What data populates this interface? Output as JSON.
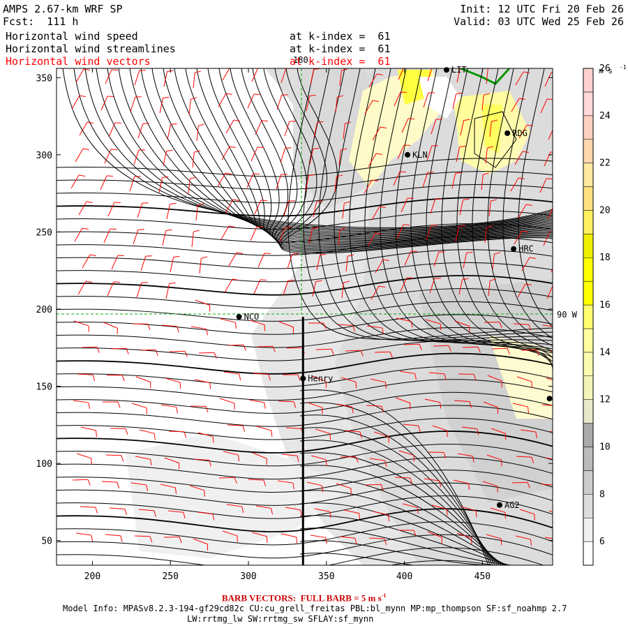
{
  "header": {
    "model": "AMPS 2.67-km WRF SP",
    "forecast": "Fcst:  111 h",
    "init": "Init: 12 UTC Fri 20 Feb 26",
    "valid": "Valid: 03 UTC Wed 25 Feb 26"
  },
  "fields": [
    {
      "name": "Horizontal wind speed",
      "level": "at k-index =  61",
      "color": "#000000"
    },
    {
      "name": "Horizontal wind streamlines",
      "level": "at k-index =  61",
      "color": "#000000"
    },
    {
      "name": "Horizontal wind vectors",
      "level": "at k-index =  61",
      "color": "#ff0000"
    }
  ],
  "map": {
    "x_axis": {
      "range": [
        177,
        495
      ],
      "ticks": [
        "200",
        "250",
        "300",
        "350",
        "400",
        "450"
      ]
    },
    "y_axis": {
      "range": [
        34,
        356
      ],
      "ticks": [
        "50",
        "100",
        "150",
        "200",
        "250",
        "300",
        "350"
      ]
    },
    "meridian_label": "180",
    "parallel_label": "90 W",
    "stations": [
      {
        "id": "LIT",
        "label": "LIT",
        "x": 427,
        "y": 355
      },
      {
        "id": "RDG",
        "label": "RDG",
        "x": 466,
        "y": 314
      },
      {
        "id": "KLN",
        "label": "KLN",
        "x": 402,
        "y": 300
      },
      {
        "id": "HRC",
        "label": "HRC",
        "x": 470,
        "y": 239
      },
      {
        "id": "NCO",
        "label": "NCO",
        "x": 294,
        "y": 195
      },
      {
        "id": "Henry",
        "label": "Henry",
        "x": 335,
        "y": 155
      },
      {
        "id": "AG2",
        "label": "AG2",
        "x": 461,
        "y": 73
      },
      {
        "id": "EDGE",
        "label": "",
        "x": 493,
        "y": 142
      }
    ],
    "transect": {
      "x": 335,
      "y_from": 34,
      "y_to": 195
    }
  },
  "colorbar": {
    "unit": "m s",
    "unit_exp": "-1",
    "labels": [
      "6",
      "8",
      "10",
      "12",
      "14",
      "16",
      "18",
      "20",
      "22",
      "24",
      "26"
    ],
    "colors": [
      "#ffffff",
      "#f0f0f0",
      "#dddddd",
      "#cccccc",
      "#bbbbbb",
      "#aaaaaa",
      "#e8e8cc",
      "#f4f4b8",
      "#fbfbb0",
      "#ffffa0",
      "#ffff70",
      "#ffff00",
      "#ffff00",
      "#f0f000",
      "#fff060",
      "#ffe080",
      "#ffe8a0",
      "#ffd8b0",
      "#ffd0c0",
      "#ffd8d8",
      "#ffd0d0"
    ]
  },
  "footer": {
    "barb_title": "BARB VECTORS:  FULL BARB = 5 m s",
    "barb_exp": "-1",
    "model_info": "Model Info: MPASv8.2.3-194-gf29cd82c CU:cu_grell_freitas PBL:bl_mynn MP:mp_thompson SF:sf_noahmp 2.7",
    "model_info2": "LW:rrtmg_lw SW:rrtmg_sw SFLAY:sf_mynn"
  }
}
